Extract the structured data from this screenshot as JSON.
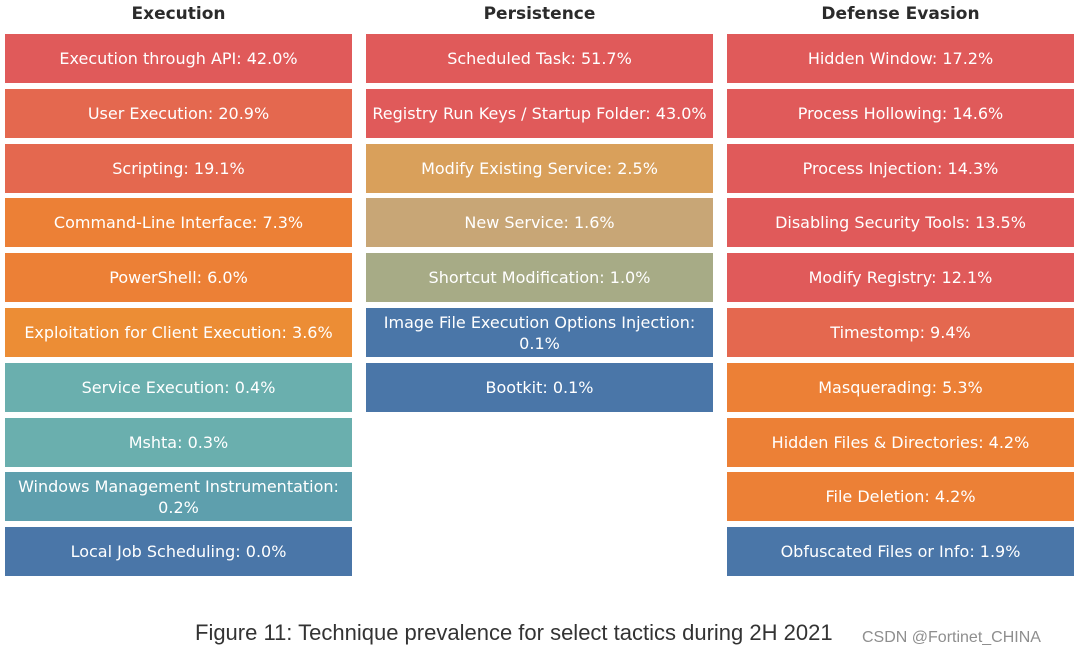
{
  "chart_data": {
    "type": "table",
    "title": "Figure 11: Technique prevalence for select tactics during 2H 2021",
    "unit": "%",
    "columns": [
      {
        "title": "Execution",
        "items": [
          {
            "text": "Execution through API: 42.0%",
            "name": "Execution through API",
            "value": 42.0,
            "color": "#e05a5a"
          },
          {
            "text": "User Execution: 20.9%",
            "name": "User Execution",
            "value": 20.9,
            "color": "#e4684f"
          },
          {
            "text": "Scripting: 19.1%",
            "name": "Scripting",
            "value": 19.1,
            "color": "#e4684f"
          },
          {
            "text": "Command-Line Interface: 7.3%",
            "name": "Command-Line Interface",
            "value": 7.3,
            "color": "#ec8036"
          },
          {
            "text": "PowerShell: 6.0%",
            "name": "PowerShell",
            "value": 6.0,
            "color": "#ec8036"
          },
          {
            "text": "Exploitation for Client Execution: 3.6%",
            "name": "Exploitation for Client Execution",
            "value": 3.6,
            "color": "#ec8d35"
          },
          {
            "text": "Service Execution: 0.4%",
            "name": "Service Execution",
            "value": 0.4,
            "color": "#6aafae"
          },
          {
            "text": "Mshta: 0.3%",
            "name": "Mshta",
            "value": 0.3,
            "color": "#6aafae"
          },
          {
            "text": "Windows Management Instrumentation: 0.2%",
            "name": "Windows Management Instrumentation",
            "value": 0.2,
            "color": "#5e9fad"
          },
          {
            "text": "Local Job Scheduling: 0.0%",
            "name": "Local Job Scheduling",
            "value": 0.0,
            "color": "#4a76a8"
          }
        ]
      },
      {
        "title": "Persistence",
        "items": [
          {
            "text": "Scheduled Task: 51.7%",
            "name": "Scheduled Task",
            "value": 51.7,
            "color": "#e05a5a"
          },
          {
            "text": "Registry Run Keys / Startup Folder: 43.0%",
            "name": "Registry Run Keys / Startup Folder",
            "value": 43.0,
            "color": "#e05a5a"
          },
          {
            "text": "Modify Existing Service: 2.5%",
            "name": "Modify Existing Service",
            "value": 2.5,
            "color": "#d9a05b"
          },
          {
            "text": "New Service: 1.6%",
            "name": "New Service",
            "value": 1.6,
            "color": "#c8a676"
          },
          {
            "text": "Shortcut Modification: 1.0%",
            "name": "Shortcut Modification",
            "value": 1.0,
            "color": "#a7ab86"
          },
          {
            "text": "Image File Execution Options Injection: 0.1%",
            "name": "Image File Execution Options Injection",
            "value": 0.1,
            "color": "#4a76a8"
          },
          {
            "text": "Bootkit: 0.1%",
            "name": "Bootkit",
            "value": 0.1,
            "color": "#4a76a8"
          }
        ]
      },
      {
        "title": "Defense Evasion",
        "items": [
          {
            "text": "Hidden Window: 17.2%",
            "name": "Hidden Window",
            "value": 17.2,
            "color": "#e05a5a"
          },
          {
            "text": "Process Hollowing: 14.6%",
            "name": "Process Hollowing",
            "value": 14.6,
            "color": "#e05a5a"
          },
          {
            "text": "Process Injection: 14.3%",
            "name": "Process Injection",
            "value": 14.3,
            "color": "#e05a5a"
          },
          {
            "text": "Disabling Security Tools: 13.5%",
            "name": "Disabling Security Tools",
            "value": 13.5,
            "color": "#e05a5a"
          },
          {
            "text": "Modify Registry: 12.1%",
            "name": "Modify Registry",
            "value": 12.1,
            "color": "#e05a5a"
          },
          {
            "text": "Timestomp: 9.4%",
            "name": "Timestomp",
            "value": 9.4,
            "color": "#e4684f"
          },
          {
            "text": "Masquerading: 5.3%",
            "name": "Masquerading",
            "value": 5.3,
            "color": "#ec8036"
          },
          {
            "text": "Hidden Files & Directories: 4.2%",
            "name": "Hidden Files & Directories",
            "value": 4.2,
            "color": "#ec8036"
          },
          {
            "text": "File Deletion: 4.2%",
            "name": "File Deletion",
            "value": 4.2,
            "color": "#ec8036"
          },
          {
            "text": "Obfuscated Files or Info: 1.9%",
            "name": "Obfuscated Files or Info",
            "value": 1.9,
            "color": "#4a76a8"
          }
        ]
      }
    ]
  },
  "watermark": "CSDN @Fortinet_CHINA"
}
